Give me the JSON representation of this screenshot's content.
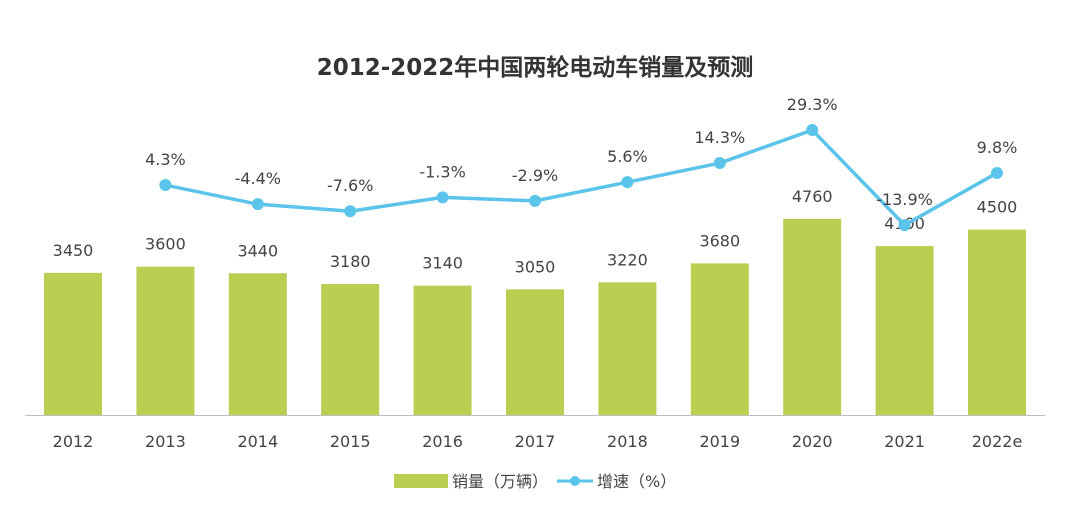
{
  "chart_data": {
    "type": "bar+line",
    "title": "2012-2022年中国两轮电动车销量及预测",
    "categories": [
      "2012",
      "2013",
      "2014",
      "2015",
      "2016",
      "2017",
      "2018",
      "2019",
      "2020",
      "2021",
      "2022e"
    ],
    "series": [
      {
        "name": "销量（万辆）",
        "type": "bar",
        "color": "#b8cf52",
        "values": [
          3450,
          3600,
          3440,
          3180,
          3140,
          3050,
          3220,
          3680,
          4760,
          4100,
          4500
        ],
        "labels": [
          "3450",
          "3600",
          "3440",
          "3180",
          "3140",
          "3050",
          "3220",
          "3680",
          "4760",
          "4100",
          "4500"
        ]
      },
      {
        "name": "增速（%）",
        "type": "line",
        "color": "#5bc4ea",
        "values": [
          null,
          4.3,
          -4.4,
          -7.6,
          -1.3,
          -2.9,
          5.6,
          14.3,
          29.3,
          -13.9,
          9.8
        ],
        "labels": [
          "",
          "4.3%",
          "-4.4%",
          "-7.6%",
          "-1.3%",
          "-2.9%",
          "5.6%",
          "14.3%",
          "29.3%",
          "-13.9%",
          "9.8%"
        ]
      }
    ],
    "ylim": [
      0,
      10000
    ],
    "y2lim": [
      -20,
      40
    ],
    "grid": false,
    "legend_position": "bottom"
  }
}
